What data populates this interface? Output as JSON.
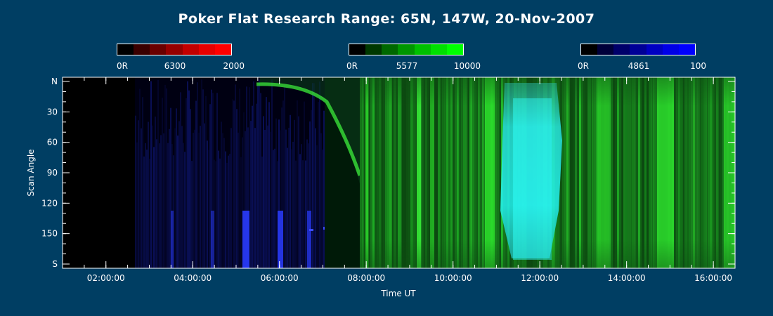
{
  "title": "Poker Flat Research Range: 65N, 147W, 20-Nov-2007",
  "colorbars": [
    {
      "name": "6300",
      "min_label": "0R",
      "mid_label": "6300",
      "max_label": "2000",
      "colors": [
        "#000000",
        "#3a0000",
        "#6a0000",
        "#960000",
        "#c20000",
        "#e60000",
        "#ff0000"
      ]
    },
    {
      "name": "5577",
      "min_label": "0R",
      "mid_label": "5577",
      "max_label": "10000",
      "colors": [
        "#000000",
        "#003800",
        "#006800",
        "#009600",
        "#00c000",
        "#00e000",
        "#00ff00"
      ]
    },
    {
      "name": "4861",
      "min_label": "0R",
      "mid_label": "4861",
      "max_label": "100",
      "colors": [
        "#000000",
        "#00003a",
        "#00006a",
        "#000096",
        "#0000c2",
        "#0000e6",
        "#0000ff"
      ]
    }
  ],
  "chart_data": {
    "type": "heatmap",
    "title": "Poker Flat Research Range: 65N, 147W, 20-Nov-2007",
    "xlabel": "Time UT",
    "ylabel": "Scan Angle",
    "xlim": [
      "01:00:00",
      "16:30:00"
    ],
    "ylim": [
      "N",
      "S"
    ],
    "x_ticks": [
      "02:00:00",
      "04:00:00",
      "06:00:00",
      "08:00:00",
      "10:00:00",
      "12:00:00",
      "14:00:00",
      "16:00:00"
    ],
    "y_ticks": [
      "N",
      "30",
      "60",
      "90",
      "120",
      "150",
      "S"
    ],
    "channels": [
      "6300",
      "5577",
      "4861"
    ],
    "background_color": "#003e63"
  }
}
